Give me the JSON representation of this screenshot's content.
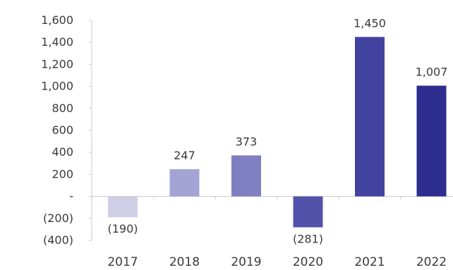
{
  "chart_data": {
    "type": "bar",
    "title": "",
    "xlabel": "",
    "ylabel": "",
    "categories": [
      "2017",
      "2018",
      "2019",
      "2020",
      "2021",
      "2022"
    ],
    "values": [
      -190,
      247,
      373,
      -281,
      1450,
      1007
    ],
    "data_labels": [
      "(190)",
      "247",
      "373",
      "(281)",
      "1,450",
      "1,007"
    ],
    "ylim": [
      -400,
      1600
    ],
    "yticks": [
      -400,
      -200,
      0,
      200,
      400,
      600,
      800,
      1000,
      1200,
      1400,
      1600
    ],
    "ytick_labels": [
      "(400)",
      "(200)",
      "-",
      "200",
      "400",
      "600",
      "800",
      "1,000",
      "1,200",
      "1,400",
      "1,600"
    ],
    "bar_colors": [
      "#cfcfe8",
      "#a3a3d6",
      "#7f7fc2",
      "#5252aa",
      "#42429f",
      "#2e2e8f"
    ],
    "grid": false,
    "legend": "none"
  }
}
